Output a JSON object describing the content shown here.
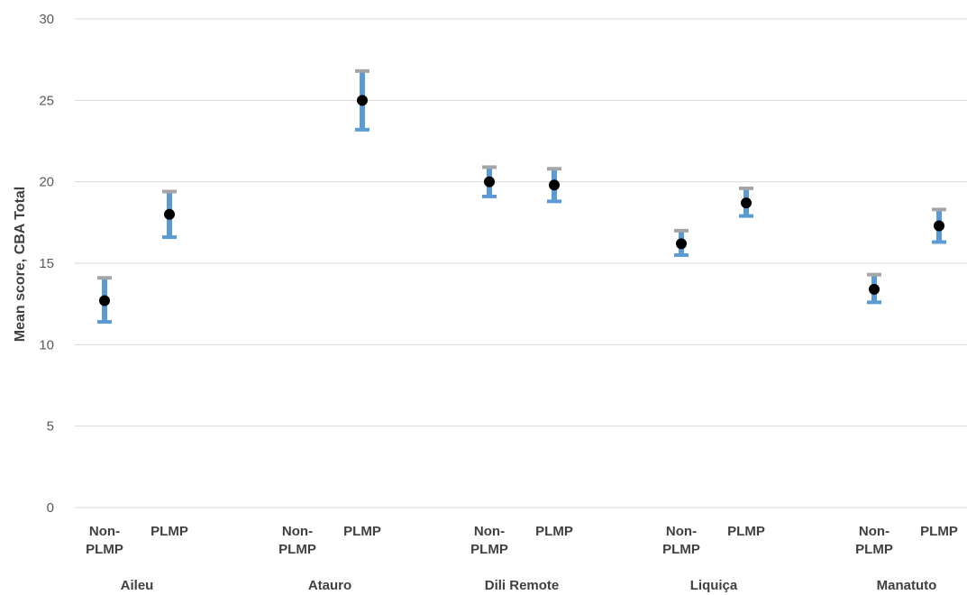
{
  "chart_data": {
    "type": "scatter",
    "ylabel": "Mean score, CBA Total",
    "ylim": [
      0,
      30
    ],
    "yticks": [
      0,
      5,
      10,
      15,
      20,
      25,
      30
    ],
    "grid": true,
    "groups": [
      {
        "name": "Aileu",
        "points": [
          {
            "category": [
              "Non-",
              "PLMP"
            ],
            "mean": 12.7,
            "lower": 11.4,
            "upper": 14.1
          },
          {
            "category": [
              "PLMP"
            ],
            "mean": 18.0,
            "lower": 16.6,
            "upper": 19.4
          }
        ]
      },
      {
        "name": "Atauro",
        "points": [
          {
            "category": [
              "Non-",
              "PLMP"
            ],
            "mean": null,
            "lower": null,
            "upper": null
          },
          {
            "category": [
              "PLMP"
            ],
            "mean": 25.0,
            "lower": 23.2,
            "upper": 26.8
          }
        ]
      },
      {
        "name": "Dili Remote",
        "points": [
          {
            "category": [
              "Non-",
              "PLMP"
            ],
            "mean": 20.0,
            "lower": 19.1,
            "upper": 20.9
          },
          {
            "category": [
              "PLMP"
            ],
            "mean": 19.8,
            "lower": 18.8,
            "upper": 20.8
          }
        ]
      },
      {
        "name": "Liquiça",
        "points": [
          {
            "category": [
              "Non-",
              "PLMP"
            ],
            "mean": 16.2,
            "lower": 15.5,
            "upper": 17.0
          },
          {
            "category": [
              "PLMP"
            ],
            "mean": 18.7,
            "lower": 17.9,
            "upper": 19.6
          }
        ]
      },
      {
        "name": "Manatuto",
        "points": [
          {
            "category": [
              "Non-",
              "PLMP"
            ],
            "mean": 13.4,
            "lower": 12.6,
            "upper": 14.3
          },
          {
            "category": [
              "PLMP"
            ],
            "mean": 17.3,
            "lower": 16.3,
            "upper": 18.3
          }
        ]
      }
    ],
    "colors": {
      "error_bar": "#5b9bd5",
      "upper_cap": "#a5a5a5",
      "marker": "#000000",
      "grid": "#d9d9d9"
    }
  }
}
